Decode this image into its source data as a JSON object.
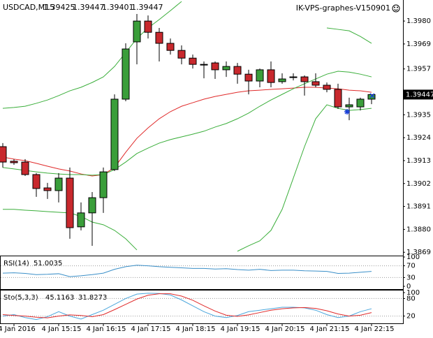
{
  "chart_data": [
    {
      "type": "candlestick",
      "title": "USDCAD,M15",
      "subtitle": "IK-VPS-graphes-V150901",
      "categories": [
        null,
        "4 Jan 2016",
        null,
        null,
        null,
        "4 Jan 15:15",
        null,
        null,
        null,
        "4 Jan 16:15",
        null,
        null,
        null,
        "4 Jan 17:15",
        null,
        null,
        null,
        "4 Jan 18:15",
        null,
        null,
        null,
        "4 Jan 19:15",
        null,
        null,
        null,
        "4 Jan 20:15",
        null,
        null,
        null,
        "4 Jan 21:15",
        null,
        null,
        null,
        "4 Jan 22:15"
      ],
      "open": [
        1.39197,
        1.39127,
        1.39123,
        1.39063,
        1.38999,
        1.38986,
        1.39046,
        1.38812,
        1.38879,
        1.38952,
        1.39087,
        1.39425,
        1.397,
        1.398,
        1.39746,
        1.39693,
        1.39659,
        1.39622,
        1.39592,
        1.39599,
        1.39566,
        1.39582,
        1.39545,
        1.39512,
        1.39566,
        1.39509,
        1.39532,
        1.39532,
        1.39509,
        1.39492,
        1.39472,
        1.39388,
        1.39388,
        1.39425
      ],
      "high": [
        1.39214,
        1.39137,
        1.39137,
        1.3907,
        1.39023,
        1.3907,
        1.39097,
        1.38929,
        1.38979,
        1.39097,
        1.39448,
        1.39693,
        1.39834,
        1.39827,
        1.39767,
        1.39716,
        1.39683,
        1.39639,
        1.39606,
        1.39606,
        1.39606,
        1.39599,
        1.39566,
        1.39572,
        1.39606,
        1.39549,
        1.39549,
        1.39539,
        1.39549,
        1.39505,
        1.39499,
        1.39432,
        1.39432,
        1.39447
      ],
      "low": [
        1.39097,
        1.3911,
        1.39056,
        1.38956,
        1.38946,
        1.38929,
        1.38755,
        1.38795,
        1.38721,
        1.38879,
        1.3908,
        1.39415,
        1.39592,
        1.39716,
        1.39606,
        1.39639,
        1.39592,
        1.39572,
        1.39525,
        1.39522,
        1.39532,
        1.39499,
        1.39448,
        1.39482,
        1.39482,
        1.39499,
        1.39515,
        1.39442,
        1.39482,
        1.39458,
        1.39378,
        1.39324,
        1.39371,
        1.39401
      ],
      "close": [
        1.39123,
        1.3912,
        1.39063,
        1.38996,
        1.38986,
        1.39046,
        1.38808,
        1.38879,
        1.38952,
        1.39076,
        1.39425,
        1.39666,
        1.398,
        1.39746,
        1.39693,
        1.39659,
        1.39622,
        1.39592,
        1.39589,
        1.39566,
        1.39582,
        1.39545,
        1.39512,
        1.39566,
        1.39505,
        1.39522,
        1.39529,
        1.39509,
        1.39492,
        1.39472,
        1.39388,
        1.39398,
        1.39425,
        1.39447
      ],
      "up_color": "#3a9e3a",
      "down_color": "#c8282d",
      "series": [
        {
          "color": "#e02a2a",
          "values": [
            1.39147,
            1.39137,
            1.3913,
            1.39117,
            1.39103,
            1.3909,
            1.3908,
            1.39066,
            1.39056,
            1.39063,
            1.39097,
            1.3917,
            1.39237,
            1.39287,
            1.39331,
            1.39365,
            1.39391,
            1.39408,
            1.39425,
            1.39438,
            1.39448,
            1.39458,
            1.39465,
            1.39468,
            1.39472,
            1.39475,
            1.39478,
            1.39482,
            1.39482,
            1.39478,
            1.39475,
            1.39468,
            1.39465,
            1.39458
          ]
        },
        {
          "color": "#3aae3a",
          "values": [
            1.39381,
            1.39385,
            1.39391,
            1.39405,
            1.39421,
            1.39442,
            1.39465,
            1.39482,
            1.39505,
            1.39532,
            1.39582,
            1.39649,
            1.39716,
            1.39767,
            1.39807,
            1.3985,
            1.39894,
            null,
            null,
            null,
            null,
            null,
            null,
            null,
            null,
            null,
            null,
            null,
            null,
            1.39767,
            1.3976,
            1.39753,
            1.39726,
            1.39693
          ]
        },
        {
          "color": "#3aae3a",
          "values": [
            1.38896,
            1.38896,
            1.38892,
            1.38889,
            1.38885,
            1.38882,
            1.38879,
            1.38862,
            1.38835,
            1.38822,
            1.38795,
            1.38755,
            1.38701,
            null,
            null,
            null,
            null,
            null,
            null,
            null,
            null,
            1.38695,
            1.38721,
            1.38745,
            1.38795,
            1.38896,
            1.39046,
            1.39197,
            1.39331,
            1.39398,
            1.39381,
            1.39371,
            1.39375,
            1.39381
          ]
        },
        {
          "color": "#3aae3a",
          "values": [
            1.39097,
            1.3909,
            1.39083,
            1.39076,
            1.3907,
            1.39066,
            1.39063,
            1.39063,
            1.3906,
            1.39063,
            1.39087,
            1.39123,
            1.39164,
            1.3919,
            1.39214,
            1.39231,
            1.39244,
            1.39257,
            1.39271,
            1.39291,
            1.39308,
            1.39331,
            1.39358,
            1.39391,
            1.39421,
            1.39448,
            1.39475,
            1.39499,
            1.39522,
            1.39545,
            1.39559,
            1.39555,
            1.39545,
            1.39532
          ]
        }
      ],
      "ylim": [
        1.38674,
        1.39901
      ],
      "yticks": [
        {
          "value": 1.398,
          "label": "1.3980"
        },
        {
          "value": 1.3969,
          "label": "1.3969"
        },
        {
          "value": 1.3957,
          "label": "1.3957"
        },
        {
          "value": 1.3935,
          "label": "1.3935"
        },
        {
          "value": 1.3924,
          "label": "1.3924"
        },
        {
          "value": 1.3913,
          "label": "1.3913"
        },
        {
          "value": 1.3902,
          "label": "1.3902"
        },
        {
          "value": 1.3891,
          "label": "1.3891"
        },
        {
          "value": 1.388,
          "label": "1.3880"
        },
        {
          "value": 1.3869,
          "label": "1.3869"
        }
      ]
    },
    {
      "type": "line",
      "title": "RSI(14)",
      "series": [
        {
          "color": "#3a8fc8",
          "values": [
            45,
            46,
            44,
            40,
            41,
            43,
            33,
            36,
            40,
            45,
            58,
            67,
            72,
            70,
            67,
            65,
            63,
            61,
            61,
            59,
            60,
            57,
            55,
            58,
            54,
            55,
            55,
            53,
            52,
            51,
            44,
            45,
            48,
            51.0035
          ]
        }
      ],
      "ylim": [
        0,
        100
      ],
      "yticks": [
        100,
        70,
        30,
        0
      ]
    },
    {
      "type": "line",
      "title": "Sto(5,3,3)",
      "series": [
        {
          "color": "#4aa6dc",
          "values": [
            20,
            25,
            15,
            8,
            18,
            35,
            20,
            10,
            25,
            40,
            60,
            80,
            95,
            98,
            97,
            92,
            75,
            55,
            35,
            20,
            15,
            22,
            35,
            40,
            45,
            50,
            50,
            48,
            40,
            25,
            15,
            20,
            35,
            45.1163
          ]
        },
        {
          "color": "#e02a2a",
          "values": [
            25,
            22,
            20,
            16,
            14,
            20,
            24,
            22,
            18,
            25,
            42,
            60,
            78,
            91,
            96,
            96,
            88,
            74,
            55,
            37,
            23,
            19,
            24,
            32,
            40,
            45,
            48,
            49,
            46,
            38,
            27,
            20,
            23,
            31.8273
          ]
        }
      ],
      "ylim": [
        0,
        100
      ],
      "yticks": [
        100,
        80,
        20
      ]
    }
  ]
}
